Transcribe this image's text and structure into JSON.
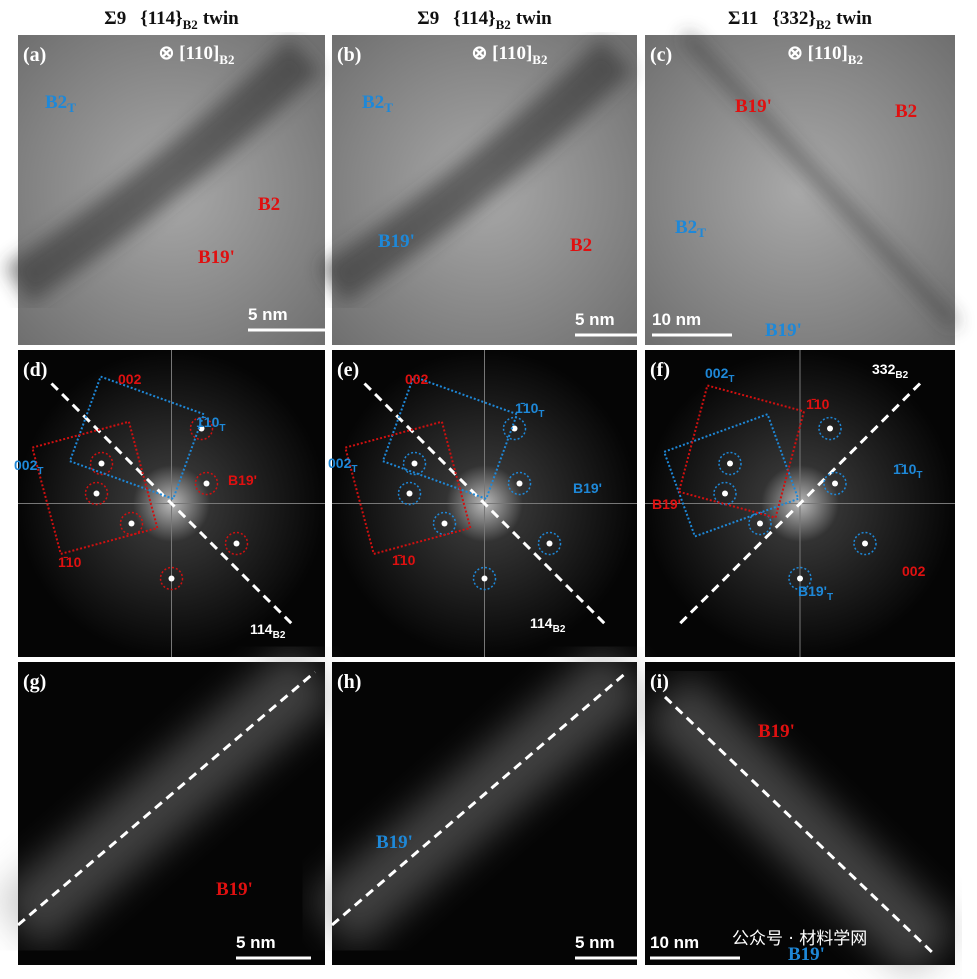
{
  "headers": [
    {
      "sigma": "Σ9",
      "plane": "{114}",
      "sub": "B2",
      "suffix": "twin"
    },
    {
      "sigma": "Σ9",
      "plane": "{114}",
      "sub": "B2",
      "suffix": "twin"
    },
    {
      "sigma": "Σ11",
      "plane": "{332}",
      "sub": "B2",
      "suffix": "twin"
    }
  ],
  "panels": [
    {
      "label": "(a)",
      "zone": "⊗ [110]",
      "zone_sub": "B2",
      "scale_bar": "5 nm",
      "annotations": [
        {
          "text": "B2",
          "sub": "T",
          "color": "#1e88d8"
        },
        {
          "text": "B2",
          "color": "#e01010"
        },
        {
          "text": "B19'",
          "color": "#e01010"
        }
      ]
    },
    {
      "label": "(b)",
      "zone": "⊗ [110]",
      "zone_sub": "B2",
      "scale_bar": "5 nm",
      "annotations": [
        {
          "text": "B2",
          "sub": "T",
          "color": "#1e88d8"
        },
        {
          "text": "B19'",
          "color": "#1e88d8"
        },
        {
          "text": "B2",
          "color": "#e01010"
        }
      ]
    },
    {
      "label": "(c)",
      "zone": "⊗ [110]",
      "zone_sub": "B2",
      "scale_bar": "10 nm",
      "annotations": [
        {
          "text": "B19'",
          "color": "#e01010"
        },
        {
          "text": "B2",
          "color": "#e01010"
        },
        {
          "text": "B2",
          "sub": "T",
          "color": "#1e88d8"
        },
        {
          "text": "B19'",
          "color": "#1e88d8"
        }
      ]
    },
    {
      "label": "(d)",
      "annotations": [
        {
          "text": "002",
          "color": "#e01010"
        },
        {
          "text": "1̄10",
          "sub": "T",
          "color": "#1e88d8"
        },
        {
          "text": "002",
          "sub": "T",
          "color": "#1e88d8"
        },
        {
          "text": "B19'",
          "color": "#e01010"
        },
        {
          "text": "1̄10",
          "color": "#e01010"
        },
        {
          "text": "114",
          "sub": "B2",
          "color": "#ffffff"
        }
      ]
    },
    {
      "label": "(e)",
      "annotations": [
        {
          "text": "002",
          "color": "#e01010"
        },
        {
          "text": "1̄10",
          "sub": "T",
          "color": "#1e88d8"
        },
        {
          "text": "002",
          "sub": "T",
          "color": "#1e88d8"
        },
        {
          "text": "B19'",
          "color": "#1e88d8"
        },
        {
          "text": "1̄10",
          "color": "#e01010"
        },
        {
          "text": "114",
          "sub": "B2",
          "color": "#ffffff"
        }
      ]
    },
    {
      "label": "(f)",
      "annotations": [
        {
          "text": "002",
          "sub": "T",
          "color": "#1e88d8"
        },
        {
          "text": "332",
          "sub": "B2",
          "color": "#ffffff"
        },
        {
          "text": "1̄10",
          "color": "#e01010"
        },
        {
          "text": "1̄10",
          "sub": "T",
          "color": "#1e88d8"
        },
        {
          "text": "B19'",
          "color": "#e01010"
        },
        {
          "text": "002",
          "color": "#e01010"
        },
        {
          "text": "B19'",
          "sub": "T",
          "color": "#1e88d8"
        }
      ]
    },
    {
      "label": "(g)",
      "scale_bar": "5 nm",
      "annotations": [
        {
          "text": "B19'",
          "color": "#e01010"
        }
      ]
    },
    {
      "label": "(h)",
      "scale_bar": "5 nm",
      "annotations": [
        {
          "text": "B19'",
          "color": "#1e88d8"
        }
      ]
    },
    {
      "label": "(i)",
      "scale_bar": "10 nm",
      "annotations": [
        {
          "text": "B19'",
          "color": "#e01010"
        },
        {
          "text": "B19'",
          "color": "#1e88d8"
        }
      ]
    }
  ],
  "watermark": "公众号 · 材料学网"
}
